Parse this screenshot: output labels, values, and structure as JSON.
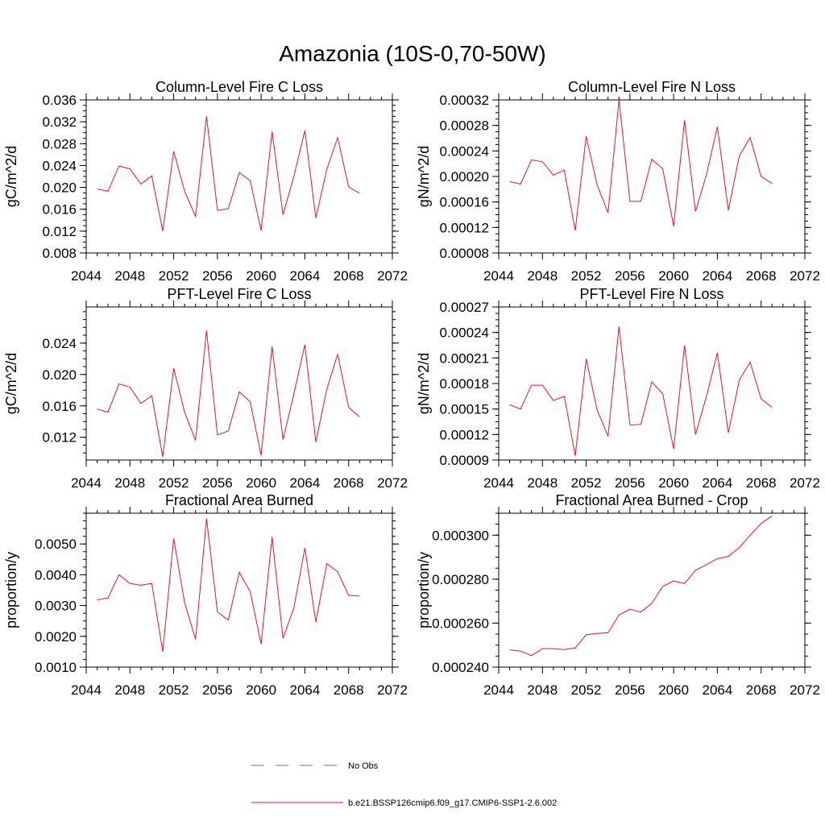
{
  "title": "Amazonia (10S-0,70-50W)",
  "colors": {
    "series": "#e8141c",
    "obs": "#6a6ad0",
    "axis": "#000000"
  },
  "legend": {
    "obs_label": "No Obs",
    "series_label": "b.e21.BSSP126cmip6.f09_g17.CMIP6-SSP1-2.6.002"
  },
  "chart_data": [
    {
      "type": "line",
      "title": "Column-Level Fire C Loss",
      "ylabel": "gC/m^2/d",
      "xlim": [
        2044,
        2072
      ],
      "xticks": [
        2044,
        2048,
        2052,
        2056,
        2060,
        2064,
        2068,
        2072
      ],
      "ylim": [
        0.008,
        0.036
      ],
      "yticks": [
        "0.008",
        "0.012",
        "0.016",
        "0.020",
        "0.024",
        "0.028",
        "0.032",
        "0.036"
      ],
      "x": [
        2045,
        2046,
        2047,
        2048,
        2049,
        2050,
        2051,
        2052,
        2053,
        2054,
        2055,
        2056,
        2057,
        2058,
        2059,
        2060,
        2061,
        2062,
        2063,
        2064,
        2065,
        2066,
        2067,
        2068,
        2069
      ],
      "series": [
        {
          "name": "b.e21.BSSP126cmip6.f09_g17.CMIP6-SSP1-2.6.002",
          "values": [
            0.0197,
            0.0193,
            0.0239,
            0.0234,
            0.0206,
            0.0221,
            0.012,
            0.0266,
            0.0193,
            0.0147,
            0.033,
            0.0158,
            0.0161,
            0.0227,
            0.0212,
            0.0121,
            0.0302,
            0.015,
            0.0221,
            0.0304,
            0.0144,
            0.0233,
            0.0291,
            0.0201,
            0.0189
          ]
        }
      ]
    },
    {
      "type": "line",
      "title": "Column-Level Fire N Loss",
      "ylabel": "gN/m^2/d",
      "xlim": [
        2044,
        2072
      ],
      "xticks": [
        2044,
        2048,
        2052,
        2056,
        2060,
        2064,
        2068,
        2072
      ],
      "ylim": [
        8e-05,
        0.00032
      ],
      "yticks": [
        "0.00008",
        "0.00012",
        "0.00016",
        "0.00020",
        "0.00024",
        "0.00028",
        "0.00032"
      ],
      "x": [
        2045,
        2046,
        2047,
        2048,
        2049,
        2050,
        2051,
        2052,
        2053,
        2054,
        2055,
        2056,
        2057,
        2058,
        2059,
        2060,
        2061,
        2062,
        2063,
        2064,
        2065,
        2066,
        2067,
        2068,
        2069
      ],
      "series": [
        {
          "name": "b.e21.BSSP126cmip6.f09_g17.CMIP6-SSP1-2.6.002",
          "values": [
            0.000192,
            0.000188,
            0.000226,
            0.000223,
            0.000202,
            0.00021,
            0.000115,
            0.000263,
            0.000187,
            0.000143,
            0.00032,
            0.000161,
            0.000161,
            0.000227,
            0.000212,
            0.000122,
            0.000288,
            0.000145,
            0.000203,
            0.000278,
            0.000147,
            0.000232,
            0.000261,
            0.0002,
            0.000189
          ]
        }
      ]
    },
    {
      "type": "line",
      "title": "PFT-Level Fire C Loss",
      "ylabel": "gC/m^2/d",
      "xlim": [
        2044,
        2072
      ],
      "xticks": [
        2044,
        2048,
        2052,
        2056,
        2060,
        2064,
        2068,
        2072
      ],
      "ylim": [
        0.0091,
        0.0286
      ],
      "yticks": [
        "0.012",
        "0.016",
        "0.020",
        "0.024"
      ],
      "x": [
        2045,
        2046,
        2047,
        2048,
        2049,
        2050,
        2051,
        2052,
        2053,
        2054,
        2055,
        2056,
        2057,
        2058,
        2059,
        2060,
        2061,
        2062,
        2063,
        2064,
        2065,
        2066,
        2067,
        2068,
        2069
      ],
      "series": [
        {
          "name": "b.e21.BSSP126cmip6.f09_g17.CMIP6-SSP1-2.6.002",
          "values": [
            0.0156,
            0.0152,
            0.0188,
            0.0184,
            0.0163,
            0.0173,
            0.0095,
            0.0208,
            0.0152,
            0.0116,
            0.0256,
            0.0123,
            0.0128,
            0.0178,
            0.0165,
            0.0097,
            0.0236,
            0.0117,
            0.0176,
            0.0238,
            0.0114,
            0.0181,
            0.0226,
            0.0158,
            0.0146
          ]
        }
      ]
    },
    {
      "type": "line",
      "title": "PFT-Level Fire N Loss",
      "ylabel": "gN/m^2/d",
      "xlim": [
        2044,
        2072
      ],
      "xticks": [
        2044,
        2048,
        2052,
        2056,
        2060,
        2064,
        2068,
        2072
      ],
      "ylim": [
        9e-05,
        0.00027
      ],
      "yticks": [
        "0.00009",
        "0.00012",
        "0.00015",
        "0.00018",
        "0.00021",
        "0.00024",
        "0.00027"
      ],
      "x": [
        2045,
        2046,
        2047,
        2048,
        2049,
        2050,
        2051,
        2052,
        2053,
        2054,
        2055,
        2056,
        2057,
        2058,
        2059,
        2060,
        2061,
        2062,
        2063,
        2064,
        2065,
        2066,
        2067,
        2068,
        2069
      ],
      "series": [
        {
          "name": "b.e21.BSSP126cmip6.f09_g17.CMIP6-SSP1-2.6.002",
          "values": [
            0.000155,
            0.00015,
            0.000178,
            0.000178,
            0.00016,
            0.000165,
            9.5e-05,
            0.000209,
            0.000149,
            0.000118,
            0.000247,
            0.000131,
            0.000132,
            0.000182,
            0.000168,
            0.000103,
            0.000225,
            0.00012,
            0.000165,
            0.000216,
            0.000122,
            0.000184,
            0.000205,
            0.000162,
            0.000152
          ]
        }
      ]
    },
    {
      "type": "line",
      "title": "Fractional Area Burned",
      "ylabel": "proportion/y",
      "xlim": [
        2044,
        2072
      ],
      "xticks": [
        2044,
        2048,
        2052,
        2056,
        2060,
        2064,
        2068,
        2072
      ],
      "ylim": [
        0.001,
        0.006
      ],
      "yticks": [
        "0.0010",
        "0.0020",
        "0.0030",
        "0.0040",
        "0.0050"
      ],
      "x": [
        2045,
        2046,
        2047,
        2048,
        2049,
        2050,
        2051,
        2052,
        2053,
        2054,
        2055,
        2056,
        2057,
        2058,
        2059,
        2060,
        2061,
        2062,
        2063,
        2064,
        2065,
        2066,
        2067,
        2068,
        2069
      ],
      "series": [
        {
          "name": "b.e21.BSSP126cmip6.f09_g17.CMIP6-SSP1-2.6.002",
          "values": [
            0.00318,
            0.00325,
            0.004,
            0.00372,
            0.00366,
            0.00372,
            0.0015,
            0.00518,
            0.0031,
            0.0019,
            0.00583,
            0.00279,
            0.00253,
            0.00408,
            0.00345,
            0.00175,
            0.00523,
            0.00193,
            0.00294,
            0.00487,
            0.00246,
            0.00436,
            0.0041,
            0.00333,
            0.00331
          ]
        }
      ]
    },
    {
      "type": "line",
      "title": "Fractional Area Burned - Crop",
      "ylabel": "proportion/y",
      "xlim": [
        2044,
        2072
      ],
      "xticks": [
        2044,
        2048,
        2052,
        2056,
        2060,
        2064,
        2068,
        2072
      ],
      "ylim": [
        0.00024,
        0.00031
      ],
      "yticks": [
        "0.000240",
        "0.000260",
        "0.000280",
        "0.000300"
      ],
      "x": [
        2045,
        2046,
        2047,
        2048,
        2049,
        2050,
        2051,
        2052,
        2053,
        2054,
        2055,
        2056,
        2057,
        2058,
        2059,
        2060,
        2061,
        2062,
        2063,
        2064,
        2065,
        2066,
        2067,
        2068,
        2069
      ],
      "series": [
        {
          "name": "b.e21.BSSP126cmip6.f09_g17.CMIP6-SSP1-2.6.002",
          "values": [
            0.0002478,
            0.0002473,
            0.0002452,
            0.0002484,
            0.0002484,
            0.000248,
            0.0002487,
            0.0002547,
            0.0002553,
            0.0002556,
            0.0002637,
            0.0002663,
            0.000265,
            0.000269,
            0.0002767,
            0.0002792,
            0.000278,
            0.000284,
            0.0002866,
            0.0002893,
            0.0002904,
            0.0002944,
            0.0003,
            0.0003053,
            0.0003088
          ]
        }
      ]
    }
  ]
}
